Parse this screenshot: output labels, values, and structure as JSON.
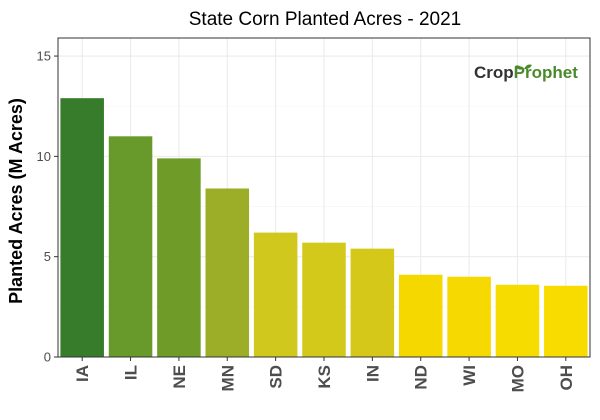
{
  "colors": {
    "panel_border": "#333333",
    "grid_major": "#ebebeb",
    "grid_minor": "#f5f5f5",
    "tick_text": "#4d4d4d",
    "logo_dark": "#333333",
    "logo_green": "#4a8a2c"
  },
  "logo": {
    "part1": "Crop",
    "part2": "Prophet"
  },
  "chart_data": {
    "type": "bar",
    "title": "State Corn Planted Acres - 2021",
    "xlabel": "",
    "ylabel": "Planted Acres (M Acres)",
    "categories": [
      "IA",
      "IL",
      "NE",
      "MN",
      "SD",
      "KS",
      "IN",
      "ND",
      "WI",
      "MO",
      "OH"
    ],
    "values": [
      12.9,
      11.0,
      9.9,
      8.4,
      6.2,
      5.7,
      5.4,
      4.1,
      4.0,
      3.6,
      3.55
    ],
    "bar_colors": [
      "#367c2b",
      "#679a2b",
      "#6f9b29",
      "#9cae27",
      "#d0c81d",
      "#d3c91b",
      "#d5c818",
      "#f4d800",
      "#f5d900",
      "#f7dc00",
      "#f8dc00"
    ],
    "ylim": [
      0,
      15.9
    ],
    "yticks": [
      0,
      5,
      10,
      15
    ],
    "ytick_labels": [
      "0",
      "5",
      "10",
      "15"
    ],
    "grid": true,
    "legend": "none"
  }
}
